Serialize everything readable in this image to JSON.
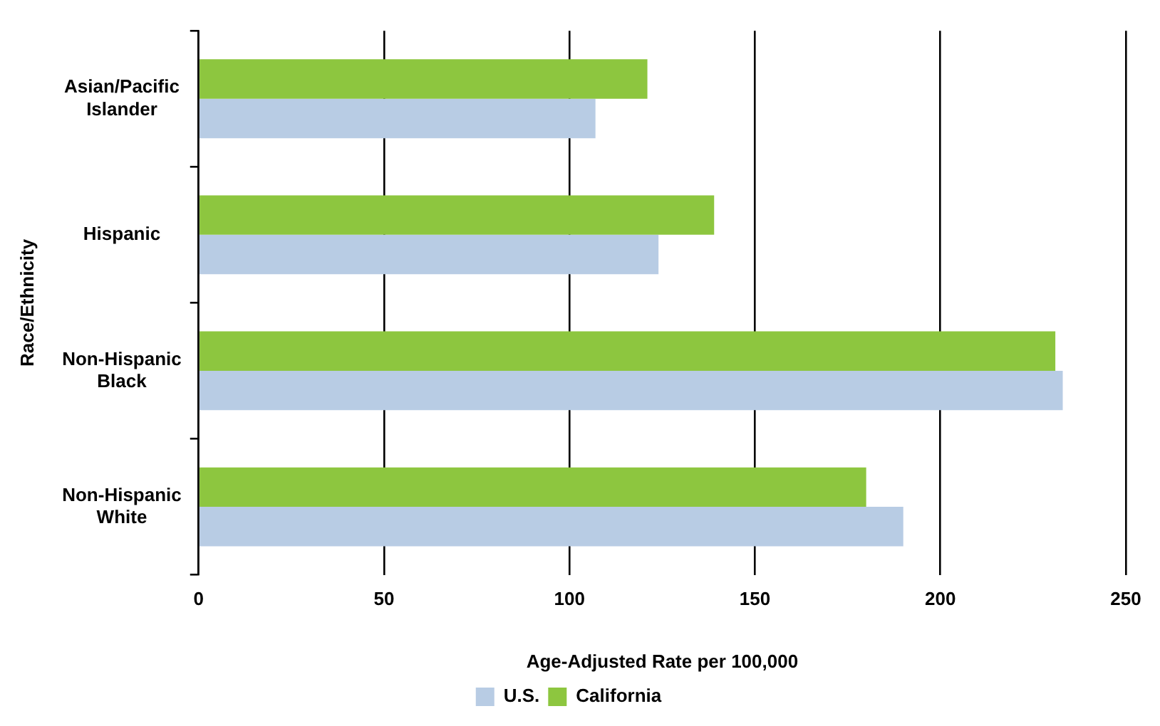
{
  "chart_data": {
    "type": "bar",
    "orientation": "horizontal",
    "xlabel": "Age-Adjusted Rate per 100,000",
    "ylabel": "Race/Ethnicity",
    "categories": [
      "Asian/Pacific Islander",
      "Hispanic",
      "Non-Hispanic Black",
      "Non-Hispanic White"
    ],
    "series": [
      {
        "name": "U.S.",
        "color": "#b8cce4",
        "values": [
          107,
          124,
          233,
          190
        ]
      },
      {
        "name": "California",
        "color": "#8dc63f",
        "values": [
          121,
          139,
          231,
          180
        ]
      }
    ],
    "xlim": [
      0,
      250
    ],
    "xticks": [
      0,
      50,
      100,
      150,
      200,
      250
    ],
    "grid": "x",
    "legend": "bottom"
  }
}
